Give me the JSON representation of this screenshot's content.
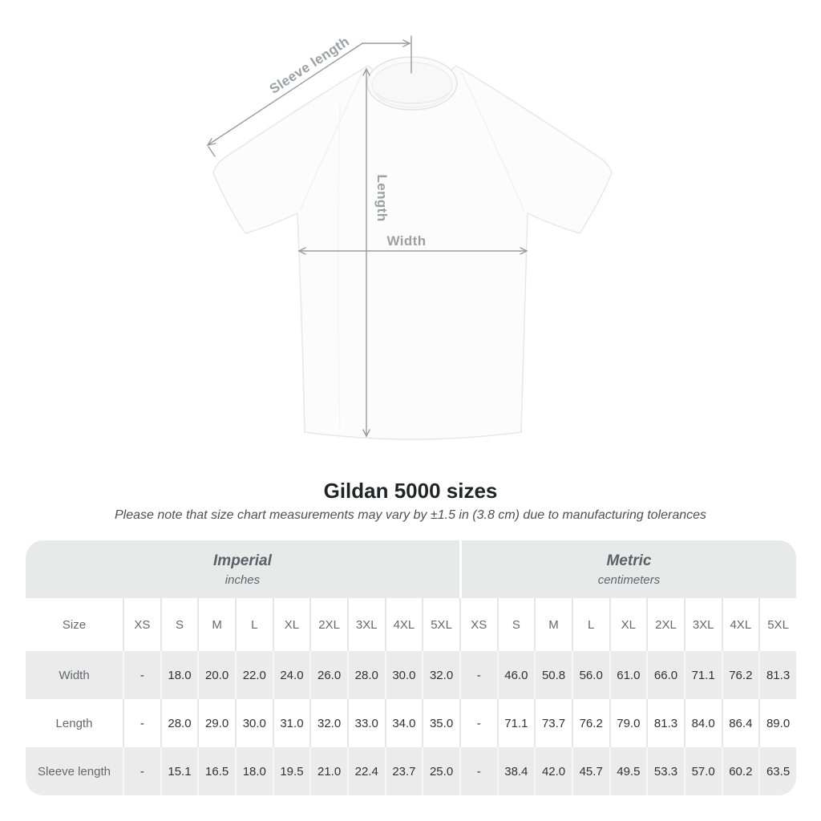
{
  "diagram": {
    "sleeve_length_label": "Sleeve length",
    "length_label": "Length",
    "width_label": "Width"
  },
  "title": "Gildan 5000 sizes",
  "subtitle": "Please note that size chart measurements may vary by ±1.5 in (3.8 cm) due to manufacturing tolerances",
  "table": {
    "unit_groups": [
      {
        "label": "Imperial",
        "sublabel": "inches"
      },
      {
        "label": "Metric",
        "sublabel": "centimeters"
      }
    ],
    "size_header": "Size",
    "sizes": [
      "XS",
      "S",
      "M",
      "L",
      "XL",
      "2XL",
      "3XL",
      "4XL",
      "5XL"
    ],
    "rows": [
      {
        "label": "Width",
        "imperial": [
          "-",
          "18.0",
          "20.0",
          "22.0",
          "24.0",
          "26.0",
          "28.0",
          "30.0",
          "32.0"
        ],
        "metric": [
          "-",
          "46.0",
          "50.8",
          "56.0",
          "61.0",
          "66.0",
          "71.1",
          "76.2",
          "81.3"
        ]
      },
      {
        "label": "Length",
        "imperial": [
          "-",
          "28.0",
          "29.0",
          "30.0",
          "31.0",
          "32.0",
          "33.0",
          "34.0",
          "35.0"
        ],
        "metric": [
          "-",
          "71.1",
          "73.7",
          "76.2",
          "79.0",
          "81.3",
          "84.0",
          "86.4",
          "89.0"
        ]
      },
      {
        "label": "Sleeve length",
        "imperial": [
          "-",
          "15.1",
          "16.5",
          "18.0",
          "19.5",
          "21.0",
          "22.4",
          "23.7",
          "25.0"
        ],
        "metric": [
          "-",
          "38.4",
          "42.0",
          "45.7",
          "49.5",
          "53.3",
          "57.0",
          "60.2",
          "63.5"
        ]
      }
    ]
  },
  "colors": {
    "header_band_bg": "#e8e9e9",
    "alt_row_bg": "#ebebeb",
    "arrow_gray": "#9b9b9b",
    "diagram_label_gray": "#9aa0a4",
    "title_color": "#212427"
  }
}
